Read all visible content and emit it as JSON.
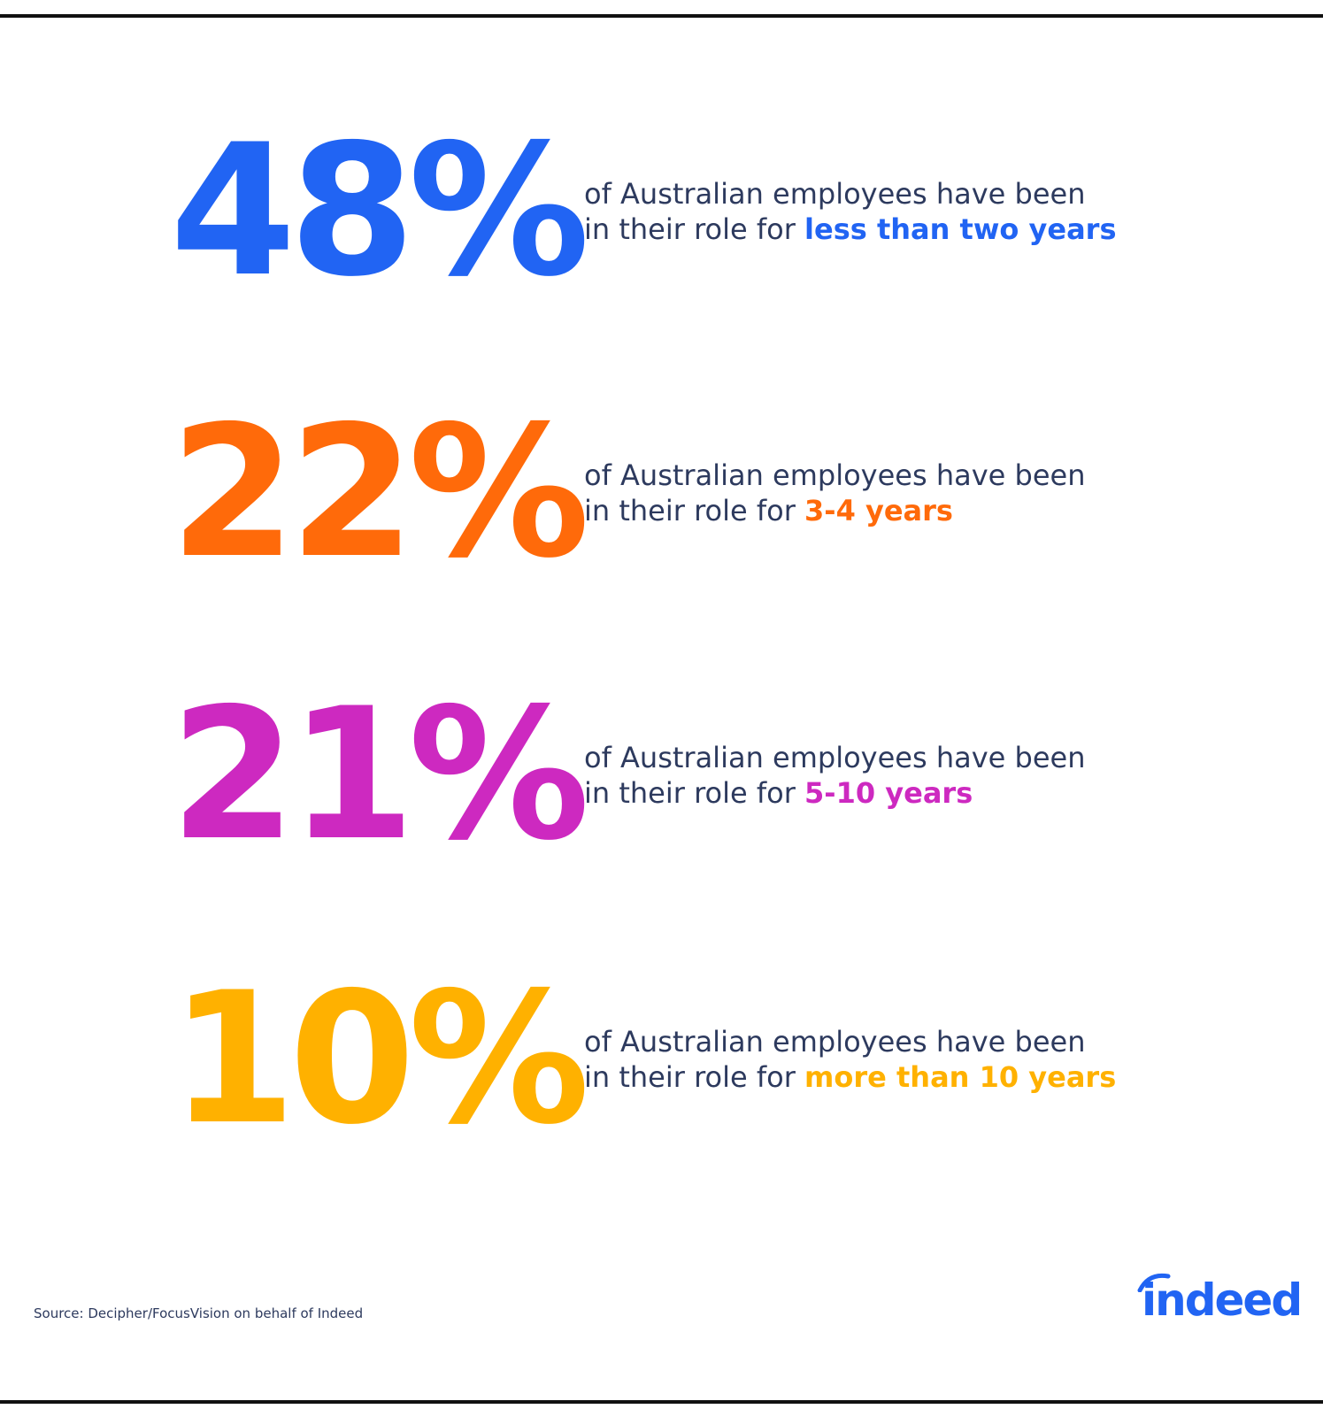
{
  "stats": [
    {
      "figure": "48%",
      "line1": "of Australian employees have been",
      "line2": "in their role for",
      "highlight": "less than two years",
      "color": "#2164f3"
    },
    {
      "figure": "22%",
      "line1": "of Australian employees have been",
      "line2": "in their role for",
      "highlight": "3-4 years",
      "color": "#ff6a0a"
    },
    {
      "figure": "21%",
      "line1": "of Australian employees have been",
      "line2": "in their role for",
      "highlight": "5-10 years",
      "color": "#cd29c0"
    },
    {
      "figure": "10%",
      "line1": "of Australian employees have been",
      "line2": "in their role for",
      "highlight": "more than 10 years",
      "color": "#ffb100"
    }
  ],
  "source": "Source: Decipher/FocusVision on behalf of Indeed",
  "logo": "indeed"
}
